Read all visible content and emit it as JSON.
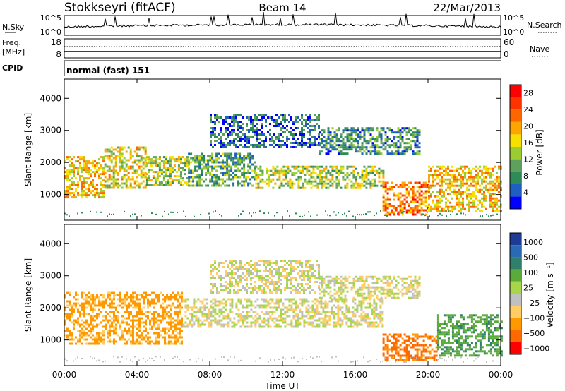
{
  "header": {
    "title": "Stokkseyri (fitACF)",
    "beam": "Beam 14",
    "date": "22/Mar/2013"
  },
  "summary": {
    "nsky_label": "N.Sky",
    "nsky_ticks": [
      "10^5",
      "10^0"
    ],
    "nsearch_label": "N.Search",
    "freq_label": "Freq.",
    "freq_unit": "[MHz]",
    "freq_ticks": [
      "18",
      "8"
    ],
    "nave_label": "Nave",
    "nave_ticks": [
      "60",
      "0"
    ],
    "cpid_label": "CPID",
    "cpid_value": "normal (fast) 151"
  },
  "colors": {
    "power_scale": [
      "#0000ff",
      "#1f5fbf",
      "#2e8b57",
      "#5fa05f",
      "#9acd32",
      "#f5e000",
      "#ffa500",
      "#ff6600",
      "#ff3300",
      "#ff0000"
    ],
    "velocity_scale": [
      "#1e3c96",
      "#2a6ab4",
      "#2f7f6a",
      "#5aaa3c",
      "#a8d64a",
      "#c0c0c0",
      "#ffcc66",
      "#ff9900",
      "#ff6a00",
      "#ff0000"
    ]
  },
  "chart_data": [
    {
      "type": "heatmap",
      "panel": "power",
      "ylabel": "Slant Range [km]",
      "yticks": [
        "1000",
        "2000",
        "3000",
        "4000"
      ],
      "ylim": [
        200,
        4600
      ],
      "xlim_hours": [
        0,
        24
      ],
      "xticks": [
        "00:00",
        "04:00",
        "08:00",
        "12:00",
        "16:00",
        "20:00",
        "00:00"
      ],
      "colorbar_label": "Power [dB]",
      "colorbar_ticks": [
        "4",
        "8",
        "12",
        "16",
        "20",
        "24",
        "28"
      ],
      "color_range": [
        0,
        30
      ],
      "echo_regions": [
        {
          "t0": 0.0,
          "t1": 2.2,
          "r0": 900,
          "r1": 2200,
          "level": 18
        },
        {
          "t0": 2.2,
          "t1": 4.5,
          "r0": 1200,
          "r1": 2500,
          "level": 16
        },
        {
          "t0": 4.5,
          "t1": 6.8,
          "r0": 1300,
          "r1": 2200,
          "level": 14
        },
        {
          "t0": 6.8,
          "t1": 10.5,
          "r0": 1300,
          "r1": 2300,
          "level": 10
        },
        {
          "t0": 10.5,
          "t1": 17.5,
          "r0": 1200,
          "r1": 1900,
          "level": 14
        },
        {
          "t0": 17.5,
          "t1": 20.0,
          "r0": 400,
          "r1": 1400,
          "level": 22
        },
        {
          "t0": 20.0,
          "t1": 24.0,
          "r0": 500,
          "r1": 1900,
          "level": 18
        },
        {
          "t0": 8.0,
          "t1": 14.0,
          "r0": 2500,
          "r1": 3500,
          "level": 6
        },
        {
          "t0": 14.0,
          "t1": 19.5,
          "r0": 2300,
          "r1": 3100,
          "level": 8
        }
      ]
    },
    {
      "type": "heatmap",
      "panel": "velocity",
      "ylabel": "Slant Range [km]",
      "yticks": [
        "1000",
        "2000",
        "3000",
        "4000"
      ],
      "ylim": [
        200,
        4600
      ],
      "xlim_hours": [
        0,
        24
      ],
      "xticks": [
        "00:00",
        "04:00",
        "08:00",
        "12:00",
        "16:00",
        "20:00",
        "00:00"
      ],
      "xlabel": "Time UT",
      "colorbar_label": "Velocity [m s⁻¹]",
      "colorbar_ticks": [
        "1000",
        "500",
        "100",
        "25",
        "−25",
        "−100",
        "−500",
        "−1000"
      ],
      "echo_regions": [
        {
          "t0": 0.0,
          "t1": 6.5,
          "r0": 900,
          "r1": 2500,
          "velocity": -150
        },
        {
          "t0": 6.5,
          "t1": 17.5,
          "r0": 1400,
          "r1": 2300,
          "velocity": 0
        },
        {
          "t0": 17.5,
          "t1": 20.5,
          "r0": 400,
          "r1": 1200,
          "velocity": -300
        },
        {
          "t0": 20.5,
          "t1": 24.0,
          "r0": 500,
          "r1": 1800,
          "velocity": 200
        },
        {
          "t0": 8.0,
          "t1": 14.0,
          "r0": 2500,
          "r1": 3500,
          "velocity": 0
        },
        {
          "t0": 14.0,
          "t1": 19.5,
          "r0": 2300,
          "r1": 3000,
          "velocity": 0
        }
      ]
    }
  ],
  "xlabel": "Time UT"
}
